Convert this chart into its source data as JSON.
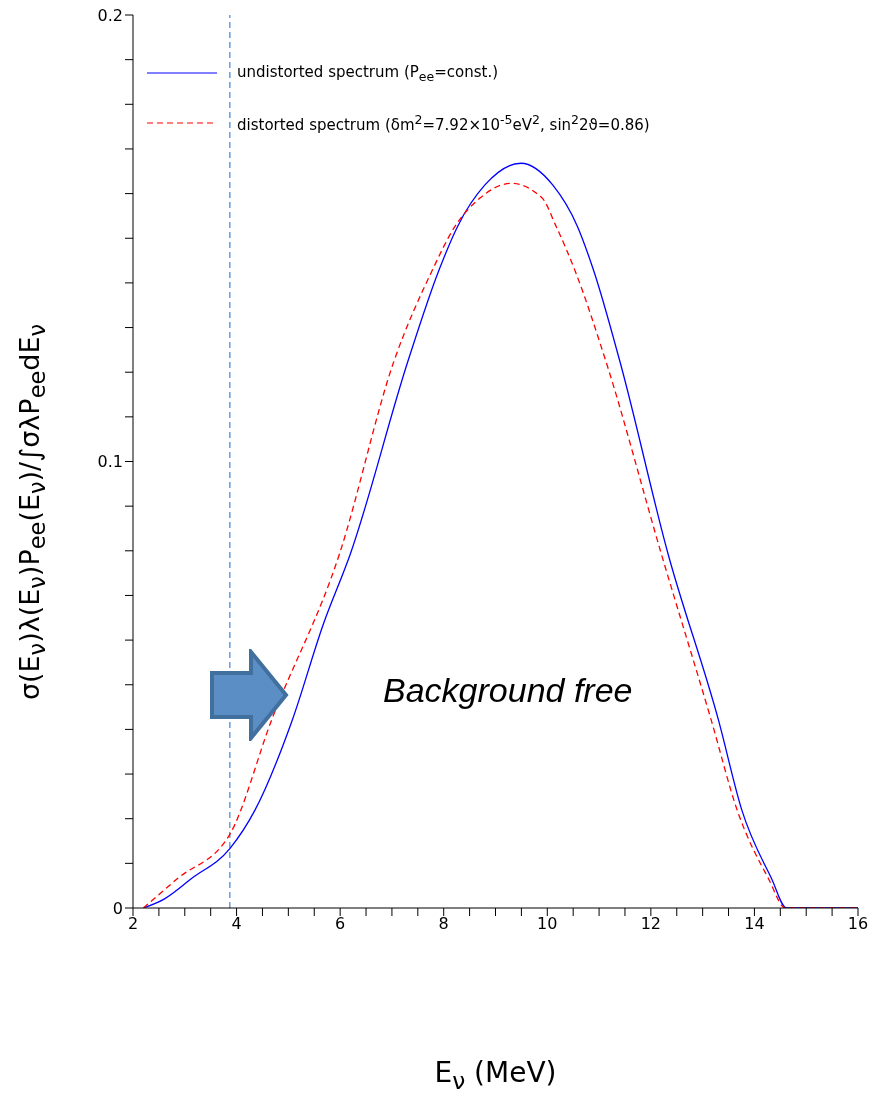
{
  "chart_data": {
    "type": "line",
    "xlabel": "E$_{ν}$ (MeV)",
    "ylabel": "σ(E$_{ν}$)λ(E$_{ν}$)P$_{ee}$(E$_{ν}$)/∫σλP$_{ee}$dE$_{ν}$",
    "xlim": [
      2,
      16
    ],
    "ylim": [
      0,
      0.2
    ],
    "xticks": [
      2,
      {
        "value": 2.5,
        "label": null
      },
      {
        "value": 3,
        "label": null
      },
      {
        "value": 3.5,
        "label": null
      },
      4,
      {
        "value": 4.5,
        "label": null
      },
      {
        "value": 5,
        "label": null
      },
      {
        "value": 5.5,
        "label": null
      },
      6,
      {
        "value": 6.5,
        "label": null
      },
      {
        "value": 7,
        "label": null
      },
      {
        "value": 7.5,
        "label": null
      },
      8,
      {
        "value": 8.5,
        "label": null
      },
      {
        "value": 9,
        "label": null
      },
      {
        "value": 9.5,
        "label": null
      },
      10,
      {
        "value": 10.5,
        "label": null
      },
      {
        "value": 11,
        "label": null
      },
      {
        "value": 11.5,
        "label": null
      },
      12,
      {
        "value": 12.5,
        "label": null
      },
      {
        "value": 13,
        "label": null
      },
      {
        "value": 13.5,
        "label": null
      },
      14,
      {
        "value": 14.5,
        "label": null
      },
      {
        "value": 15,
        "label": null
      },
      {
        "value": 15.5,
        "label": null
      },
      16
    ],
    "yticks": [
      0,
      {
        "value": 0.01,
        "label": null
      },
      {
        "value": 0.02,
        "label": null
      },
      {
        "value": 0.03,
        "label": null
      },
      {
        "value": 0.04,
        "label": null
      },
      {
        "value": 0.05,
        "label": null
      },
      {
        "value": 0.06,
        "label": null
      },
      {
        "value": 0.07,
        "label": null
      },
      {
        "value": 0.08,
        "label": null
      },
      {
        "value": 0.09,
        "label": null
      },
      0.1,
      {
        "value": 0.11,
        "label": null
      },
      {
        "value": 0.12,
        "label": null
      },
      {
        "value": 0.13,
        "label": null
      },
      {
        "value": 0.14,
        "label": null
      },
      {
        "value": 0.15,
        "label": null
      },
      {
        "value": 0.16,
        "label": null
      },
      {
        "value": 0.17,
        "label": null
      },
      {
        "value": 0.18,
        "label": null
      },
      {
        "value": 0.19,
        "label": null
      },
      0.2
    ],
    "grid": false,
    "legend": "top left",
    "marker": "none",
    "series": [
      {
        "name": "undistorted spectrum (P$_{ee}$=const.)",
        "color": "#0000ff",
        "line_style": "solid",
        "x": [
          2.2,
          2.6,
          3.13,
          3.87,
          4.35,
          5.07,
          5.67,
          6.2,
          7.31,
          7.9,
          8.27,
          8.8,
          9.49,
          10.1,
          10.58,
          10.9,
          11.4,
          12.33,
          13.31,
          13.76,
          14.33,
          14.62,
          16
        ],
        "values": [
          0,
          0.002,
          0.0066,
          0.0133,
          0.0218,
          0.0419,
          0.0634,
          0.0794,
          0.1225,
          0.1426,
          0.1527,
          0.162,
          0.1668,
          0.162,
          0.1527,
          0.1426,
          0.1225,
          0.0794,
          0.0419,
          0.0218,
          0.0066,
          0,
          0
        ]
      },
      {
        "name": "distorted spectrum (δm$^{2}$=7.92×10$^{-5}$eV$^{2}$, sin$^{2}$2ϑ=0.86)",
        "color": "#ff0000",
        "line_style": "dashed",
        "x": [
          2.2,
          2.86,
          3.87,
          4.67,
          5.99,
          7.04,
          7.77,
          8.22,
          8.7,
          9.3,
          9.9,
          10.17,
          10.54,
          11.13,
          12.2,
          13.17,
          13.67,
          14.27,
          14.6,
          16
        ],
        "values": [
          0,
          0.0066,
          0.0165,
          0.0419,
          0.0794,
          0.1225,
          0.1426,
          0.1527,
          0.159,
          0.1623,
          0.159,
          0.1527,
          0.1426,
          0.1225,
          0.0794,
          0.0419,
          0.0218,
          0.0066,
          0,
          0
        ]
      }
    ],
    "ref_lines": [
      {
        "axis": "x",
        "value": 3.87,
        "color": "#4a8fd4",
        "line_style": "dashed"
      }
    ],
    "annotations": [
      "Background free"
    ]
  }
}
